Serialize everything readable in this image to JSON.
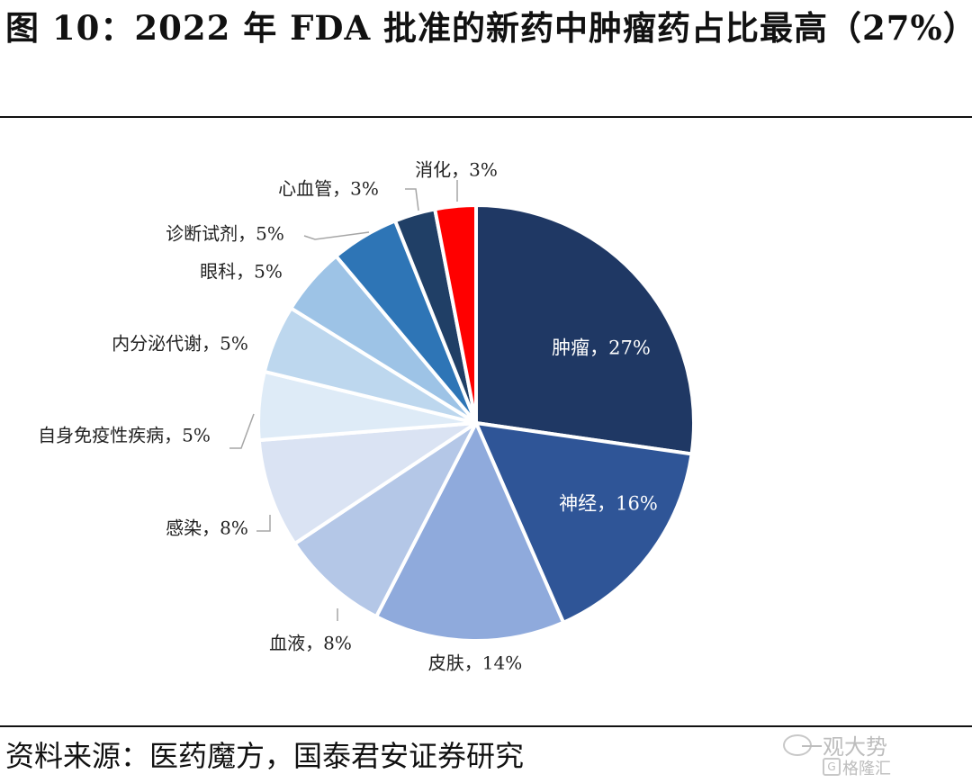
{
  "title": "图 10：2022 年 FDA 批准的新药中肿瘤药占比最高（27%）",
  "source": "资料来源：医药魔方，国泰君安证券研究",
  "watermark": {
    "line1": "一观大势",
    "line2": "格隆汇"
  },
  "chart_data": {
    "type": "pie",
    "title": "",
    "unit": "%",
    "slices": [
      {
        "label": "肿瘤",
        "value": 27,
        "text": "肿瘤，27%",
        "color": "#1f3864",
        "label_inside": true
      },
      {
        "label": "神经",
        "value": 16,
        "text": "神经，16%",
        "color": "#2f5597",
        "label_inside": true
      },
      {
        "label": "皮肤",
        "value": 14,
        "text": "皮肤，14%",
        "color": "#8faadc",
        "label_inside": false
      },
      {
        "label": "血液",
        "value": 8,
        "text": "血液，8%",
        "color": "#b4c7e7",
        "label_inside": false
      },
      {
        "label": "感染",
        "value": 8,
        "text": "感染，8%",
        "color": "#dae3f3",
        "label_inside": false
      },
      {
        "label": "自身免疫性疾病",
        "value": 5,
        "text": "自身免疫性疾病，5%",
        "color": "#deebf7",
        "label_inside": false
      },
      {
        "label": "内分泌代谢",
        "value": 5,
        "text": "内分泌代谢，5%",
        "color": "#bdd7ee",
        "label_inside": false
      },
      {
        "label": "眼科",
        "value": 5,
        "text": "眼科，5%",
        "color": "#9dc3e6",
        "label_inside": false
      },
      {
        "label": "诊断试剂",
        "value": 5,
        "text": "诊断试剂，5%",
        "color": "#2e75b6",
        "label_inside": false
      },
      {
        "label": "心血管",
        "value": 3,
        "text": "心血管，3%",
        "color": "#203f66",
        "label_inside": false
      },
      {
        "label": "消化",
        "value": 3,
        "text": "消化，3%",
        "color": "#ff0000",
        "label_inside": false
      }
    ]
  }
}
